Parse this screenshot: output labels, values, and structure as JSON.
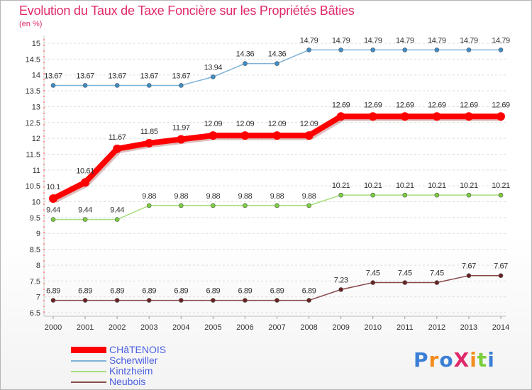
{
  "header": {
    "title": "Evolution du Taux de Taxe Foncière sur les Propriétés Bâties",
    "unit": "(en %)"
  },
  "logo": {
    "text": "ProXiti"
  },
  "chart_data": {
    "type": "line",
    "title": "Evolution du Taux de Taxe Foncière sur les Propriétés Bâties",
    "ylabel": "(en %)",
    "xlabel": "",
    "x": [
      "2000",
      "2001",
      "2002",
      "2003",
      "2004",
      "2005",
      "2006",
      "2007",
      "2008",
      "2009",
      "2010",
      "2011",
      "2012",
      "2013",
      "2014"
    ],
    "ylim": [
      6.5,
      15
    ],
    "yticks": [
      "6.5",
      "7",
      "7.5",
      "8",
      "8.5",
      "9",
      "9.5",
      "10",
      "10.5",
      "11",
      "11.5",
      "12",
      "12.5",
      "13",
      "13.5",
      "14",
      "14.5",
      "15"
    ],
    "grid": "horizontal-dashed",
    "legend_position": "bottom-left",
    "series": [
      {
        "name": "CHâTENOIS",
        "color": "#ff0000",
        "marker": "#ff0000",
        "emphasis": true,
        "values": [
          10.1,
          10.61,
          11.67,
          11.85,
          11.97,
          12.09,
          12.09,
          12.09,
          12.09,
          12.69,
          12.69,
          12.69,
          12.69,
          12.69,
          12.69
        ],
        "labels": [
          "10.1",
          "10.61",
          "11.67",
          "11.85",
          "11.97",
          "12.09",
          "12.09",
          "12.09",
          "12.09",
          "12.69",
          "12.69",
          "12.69",
          "12.69",
          "12.69",
          "12.69"
        ]
      },
      {
        "name": "Scherwiller",
        "color": "#7fb2d6",
        "marker": "#3d8ec9",
        "values": [
          13.67,
          13.67,
          13.67,
          13.67,
          13.67,
          13.94,
          14.36,
          14.36,
          14.79,
          14.79,
          14.79,
          14.79,
          14.79,
          14.79,
          14.79
        ],
        "labels": [
          "13.67",
          "13.67",
          "13.67",
          "13.67",
          "13.67",
          "13.94",
          "14.36",
          "14.36",
          "14.79",
          "14.79",
          "14.79",
          "14.79",
          "14.79",
          "14.79",
          "14.79"
        ]
      },
      {
        "name": "Kintzheim",
        "color": "#a8de7c",
        "marker": "#7ccf3c",
        "values": [
          9.44,
          9.44,
          9.44,
          9.88,
          9.88,
          9.88,
          9.88,
          9.88,
          9.88,
          10.21,
          10.21,
          10.21,
          10.21,
          10.21,
          10.21
        ],
        "labels": [
          "9.44",
          "9.44",
          "9.44",
          "9.88",
          "9.88",
          "9.88",
          "9.88",
          "9.88",
          "9.88",
          "10.21",
          "10.21",
          "10.21",
          "10.21",
          "10.21",
          "10.21"
        ]
      },
      {
        "name": "Neubois",
        "color": "#8a4a4a",
        "marker": "#6b2222",
        "values": [
          6.89,
          6.89,
          6.89,
          6.89,
          6.89,
          6.89,
          6.89,
          6.89,
          6.89,
          7.23,
          7.45,
          7.45,
          7.45,
          7.67,
          7.67
        ],
        "labels": [
          "6.89",
          "6.89",
          "6.89",
          "6.89",
          "6.89",
          "6.89",
          "6.89",
          "6.89",
          "6.89",
          "7.23",
          "7.45",
          "7.45",
          "7.45",
          "7.67",
          "7.67"
        ]
      }
    ]
  }
}
